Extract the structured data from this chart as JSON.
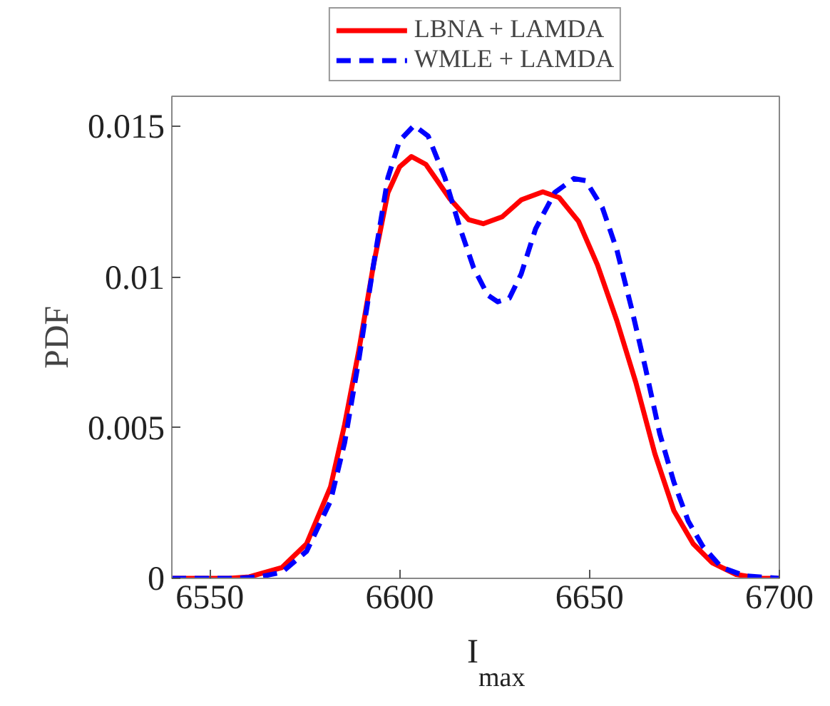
{
  "chart_data": {
    "type": "line",
    "xlabel": "I$_{max}$",
    "ylabel": "PDF",
    "xlim": [
      6540,
      6700
    ],
    "ylim": [
      0,
      0.016
    ],
    "xticks": [
      6550,
      6600,
      6650,
      6700
    ],
    "yticks": [
      0,
      0.005,
      0.01,
      0.015
    ],
    "grid": false,
    "legend": "top",
    "marker": "none",
    "series": [
      {
        "name": "LBNA + LAMDA",
        "color": "#ff0000",
        "line_style": "solid",
        "x": [
          6540,
          6555,
          6560.4,
          6569,
          6575.5,
          6581.8,
          6585.5,
          6589.3,
          6593.1,
          6596.9,
          6600,
          6603.1,
          6606.9,
          6613.2,
          6618.2,
          6622,
          6627,
          6632,
          6637.7,
          6642,
          6647.1,
          6652.1,
          6657.2,
          6662.2,
          6667.2,
          6672.2,
          6677.3,
          6682.3,
          6688.6,
          6694.8,
          6700
        ],
        "values": [
          0,
          0,
          5e-05,
          0.00036,
          0.00115,
          0.00304,
          0.0051,
          0.0076,
          0.0104,
          0.0128,
          0.01366,
          0.014,
          0.01374,
          0.0126,
          0.0119,
          0.01177,
          0.012,
          0.01256,
          0.01283,
          0.01264,
          0.01185,
          0.0104,
          0.00855,
          0.0065,
          0.00414,
          0.00225,
          0.00115,
          0.00052,
          0.00013,
          0,
          0
        ]
      },
      {
        "name": "WMLE + LAMDA",
        "color": "#0000ff",
        "line_style": "dashed",
        "x": [
          6540,
          6557,
          6563,
          6569,
          6575.5,
          6581.8,
          6585.5,
          6589.3,
          6593.1,
          6596.9,
          6600,
          6603.8,
          6607.5,
          6611.9,
          6615.7,
          6619.5,
          6623.2,
          6625.8,
          6628.9,
          6632,
          6635.8,
          6640.8,
          6645.9,
          6649,
          6653.4,
          6657.2,
          6661,
          6664.7,
          6668.5,
          6672.2,
          6676,
          6679.8,
          6684.8,
          6691,
          6700
        ],
        "values": [
          0,
          0,
          5e-05,
          0.0002,
          0.0009,
          0.00257,
          0.0045,
          0.0073,
          0.0104,
          0.0133,
          0.01453,
          0.01503,
          0.01468,
          0.0133,
          0.0117,
          0.0103,
          0.0094,
          0.00918,
          0.0093,
          0.0101,
          0.0116,
          0.0128,
          0.01327,
          0.0132,
          0.0123,
          0.0109,
          0.009,
          0.007,
          0.0048,
          0.0032,
          0.0019,
          0.00107,
          0.00036,
          8e-05,
          0
        ]
      }
    ]
  }
}
